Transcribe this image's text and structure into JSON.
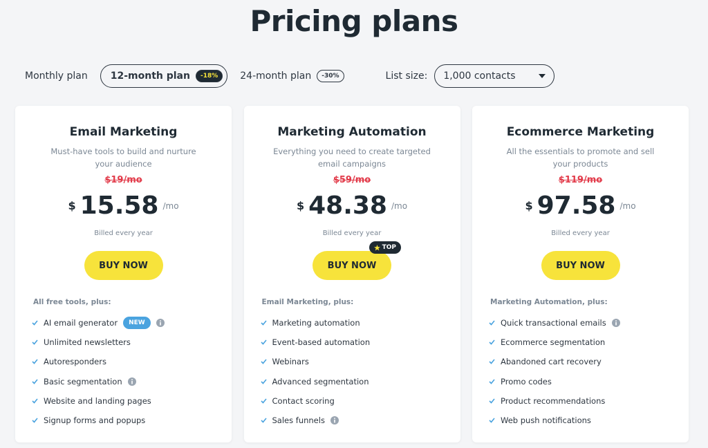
{
  "header": {
    "title": "Pricing plans"
  },
  "billing": {
    "options": [
      {
        "label": "Monthly plan",
        "selected": false
      },
      {
        "label": "12-month plan",
        "badge": "-18%",
        "selected": true
      },
      {
        "label": "24-month plan",
        "badge": "-30%",
        "selected": false
      }
    ]
  },
  "list_size": {
    "label": "List size:",
    "value": "1,000 contacts"
  },
  "plans": [
    {
      "name": "Email Marketing",
      "description": [
        "Must-have tools to build and nurture",
        "your audience"
      ],
      "old_price": "$19/mo",
      "currency": "$",
      "price": "15.58",
      "period": "/mo",
      "billing": "Billed every year",
      "button": "BUY NOW",
      "features_heading": "All free tools, plus:",
      "features": [
        {
          "text": "AI email generator",
          "badge": "NEW",
          "info": true
        },
        {
          "text": "Unlimited newsletters"
        },
        {
          "text": "Autoresponders"
        },
        {
          "text": "Basic segmentation",
          "info": true
        },
        {
          "text": "Website and landing pages"
        },
        {
          "text": "Signup forms and popups"
        }
      ]
    },
    {
      "name": "Marketing Automation",
      "description": [
        "Everything you need to create targeted",
        "email campaigns"
      ],
      "old_price": "$59/mo",
      "currency": "$",
      "price": "48.38",
      "period": "/mo",
      "billing": "Billed every year",
      "button": "BUY NOW",
      "button_badge": "TOP",
      "features_heading": "Email Marketing, plus:",
      "features": [
        {
          "text": "Marketing automation"
        },
        {
          "text": "Event-based automation"
        },
        {
          "text": "Webinars"
        },
        {
          "text": "Advanced segmentation"
        },
        {
          "text": "Contact scoring"
        },
        {
          "text": "Sales funnels",
          "info": true
        }
      ]
    },
    {
      "name": "Ecommerce Marketing",
      "description": [
        "All the essentials to promote and sell",
        "your products"
      ],
      "old_price": "$119/mo",
      "currency": "$",
      "price": "97.58",
      "period": "/mo",
      "billing": "Billed every year",
      "button": "BUY NOW",
      "features_heading": "Marketing Automation, plus:",
      "features": [
        {
          "text": "Quick transactional emails",
          "info": true
        },
        {
          "text": "Ecommerce segmentation"
        },
        {
          "text": "Abandoned cart recovery"
        },
        {
          "text": "Promo codes"
        },
        {
          "text": "Product recommendations"
        },
        {
          "text": "Web push notifications"
        }
      ]
    }
  ]
}
